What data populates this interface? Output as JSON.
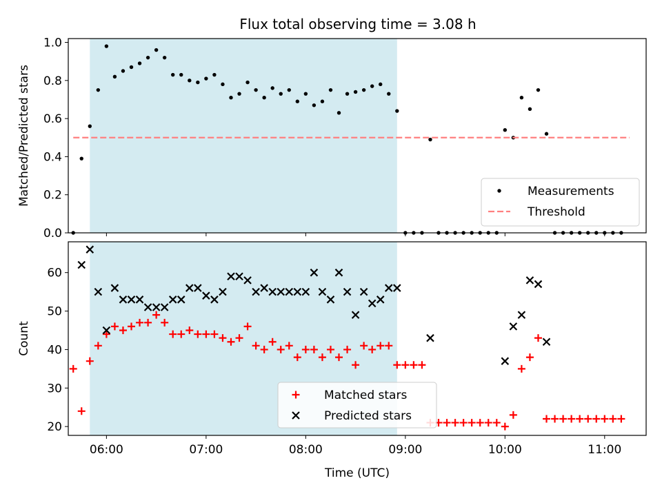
{
  "chart_data": [
    {
      "type": "scatter",
      "title": "Flux total observing time = 3.08 h",
      "ylabel": "Matched/Predicted stars",
      "xlabel": "",
      "xlim": [
        "05:37",
        "11:25"
      ],
      "ylim": [
        0,
        1.02
      ],
      "yticks": [
        0.0,
        0.2,
        0.4,
        0.6,
        0.8,
        1.0
      ],
      "ytick_labels": [
        "0.0",
        "0.2",
        "0.4",
        "0.6",
        "0.8",
        "1.0"
      ],
      "xticks": [
        "06:00",
        "07:00",
        "08:00",
        "09:00",
        "10:00",
        "11:00"
      ],
      "shaded_interval": [
        "05:50",
        "08:55"
      ],
      "shade_color": "#d4ebf1",
      "legend_placement": "lower-right",
      "series": [
        {
          "name": "Measurements",
          "marker": "dot",
          "color": "#000000",
          "x": [
            "05:40",
            "05:45",
            "05:50",
            "05:55",
            "06:00",
            "06:05",
            "06:10",
            "06:15",
            "06:20",
            "06:25",
            "06:30",
            "06:35",
            "06:40",
            "06:45",
            "06:50",
            "06:55",
            "07:00",
            "07:05",
            "07:10",
            "07:15",
            "07:20",
            "07:25",
            "07:30",
            "07:35",
            "07:40",
            "07:45",
            "07:50",
            "07:55",
            "08:00",
            "08:05",
            "08:10",
            "08:15",
            "08:20",
            "08:25",
            "08:30",
            "08:35",
            "08:40",
            "08:45",
            "08:50",
            "08:55",
            "09:00",
            "09:05",
            "09:10",
            "09:15",
            "09:20",
            "09:25",
            "09:30",
            "09:35",
            "09:40",
            "09:45",
            "09:50",
            "09:55",
            "10:00",
            "10:05",
            "10:10",
            "10:15",
            "10:20",
            "10:25",
            "10:30",
            "10:35",
            "10:40",
            "10:45",
            "10:50",
            "10:55",
            "11:00",
            "11:05",
            "11:10"
          ],
          "y": [
            0.0,
            0.39,
            0.56,
            0.75,
            0.98,
            0.82,
            0.85,
            0.87,
            0.89,
            0.92,
            0.96,
            0.92,
            0.83,
            0.83,
            0.8,
            0.79,
            0.81,
            0.83,
            0.78,
            0.71,
            0.73,
            0.79,
            0.75,
            0.71,
            0.76,
            0.73,
            0.75,
            0.69,
            0.73,
            0.67,
            0.69,
            0.75,
            0.63,
            0.73,
            0.74,
            0.75,
            0.77,
            0.78,
            0.73,
            0.64,
            0.0,
            0.0,
            0.0,
            0.49,
            0.0,
            0.0,
            0.0,
            0.0,
            0.0,
            0.0,
            0.0,
            0.0,
            0.54,
            0.5,
            0.71,
            0.65,
            0.75,
            0.52,
            0.0,
            0.0,
            0.0,
            0.0,
            0.0,
            0.0,
            0.0,
            0.0,
            0.0
          ]
        },
        {
          "name": "Threshold",
          "marker": "dashed-line",
          "color": "#ff7f7f",
          "x": [
            "05:40",
            "11:15"
          ],
          "y": [
            0.5,
            0.5
          ]
        }
      ]
    },
    {
      "type": "scatter",
      "title": "",
      "ylabel": "Count",
      "xlabel": "Time (UTC)",
      "xlim": [
        "05:37",
        "11:25"
      ],
      "ylim": [
        17.7,
        68.0
      ],
      "yticks": [
        20,
        30,
        40,
        50,
        60
      ],
      "ytick_labels": [
        "20",
        "30",
        "40",
        "50",
        "60"
      ],
      "xticks": [
        "06:00",
        "07:00",
        "08:00",
        "09:00",
        "10:00",
        "11:00"
      ],
      "xtick_labels": [
        "06:00",
        "07:00",
        "08:00",
        "09:00",
        "10:00",
        "11:00"
      ],
      "shaded_interval": [
        "05:50",
        "08:55"
      ],
      "shade_color": "#d4ebf1",
      "legend_placement": "lower-center",
      "series": [
        {
          "name": "Matched stars",
          "marker": "plus",
          "color": "#ff0000",
          "x": [
            "05:40",
            "05:45",
            "05:50",
            "05:55",
            "06:00",
            "06:05",
            "06:10",
            "06:15",
            "06:20",
            "06:25",
            "06:30",
            "06:35",
            "06:40",
            "06:45",
            "06:50",
            "06:55",
            "07:00",
            "07:05",
            "07:10",
            "07:15",
            "07:20",
            "07:25",
            "07:30",
            "07:35",
            "07:40",
            "07:45",
            "07:50",
            "07:55",
            "08:00",
            "08:05",
            "08:10",
            "08:15",
            "08:20",
            "08:25",
            "08:30",
            "08:35",
            "08:40",
            "08:45",
            "08:50",
            "08:55",
            "09:00",
            "09:05",
            "09:10",
            "09:15",
            "09:20",
            "09:25",
            "09:30",
            "09:35",
            "09:40",
            "09:45",
            "09:50",
            "09:55",
            "10:00",
            "10:05",
            "10:10",
            "10:15",
            "10:20",
            "10:25",
            "10:30",
            "10:35",
            "10:40",
            "10:45",
            "10:50",
            "10:55",
            "11:00",
            "11:05",
            "11:10"
          ],
          "y": [
            35,
            24,
            37,
            41,
            44,
            46,
            45,
            46,
            47,
            47,
            49,
            47,
            44,
            44,
            45,
            44,
            44,
            44,
            43,
            42,
            43,
            46,
            41,
            40,
            42,
            40,
            41,
            38,
            40,
            40,
            38,
            40,
            38,
            40,
            36,
            41,
            40,
            41,
            41,
            36,
            36,
            36,
            36,
            21,
            21,
            21,
            21,
            21,
            21,
            21,
            21,
            21,
            20,
            23,
            35,
            38,
            43,
            22,
            22,
            22,
            22,
            22,
            22,
            22,
            22,
            22,
            22
          ]
        },
        {
          "name": "Predicted stars",
          "marker": "x",
          "color": "#000000",
          "x": [
            "05:45",
            "05:50",
            "05:55",
            "06:00",
            "06:05",
            "06:10",
            "06:15",
            "06:20",
            "06:25",
            "06:30",
            "06:35",
            "06:40",
            "06:45",
            "06:50",
            "06:55",
            "07:00",
            "07:05",
            "07:10",
            "07:15",
            "07:20",
            "07:25",
            "07:30",
            "07:35",
            "07:40",
            "07:45",
            "07:50",
            "07:55",
            "08:00",
            "08:05",
            "08:10",
            "08:15",
            "08:20",
            "08:25",
            "08:30",
            "08:35",
            "08:40",
            "08:45",
            "08:50",
            "08:55",
            "09:15",
            "10:00",
            "10:05",
            "10:10",
            "10:15",
            "10:20",
            "10:25"
          ],
          "y": [
            62,
            66,
            55,
            45,
            56,
            53,
            53,
            53,
            51,
            51,
            51,
            53,
            53,
            56,
            56,
            54,
            53,
            55,
            59,
            59,
            58,
            55,
            56,
            55,
            55,
            55,
            55,
            55,
            60,
            55,
            53,
            60,
            55,
            49,
            55,
            52,
            53,
            56,
            56,
            43,
            37,
            46,
            49,
            58,
            57,
            42
          ]
        }
      ]
    }
  ]
}
